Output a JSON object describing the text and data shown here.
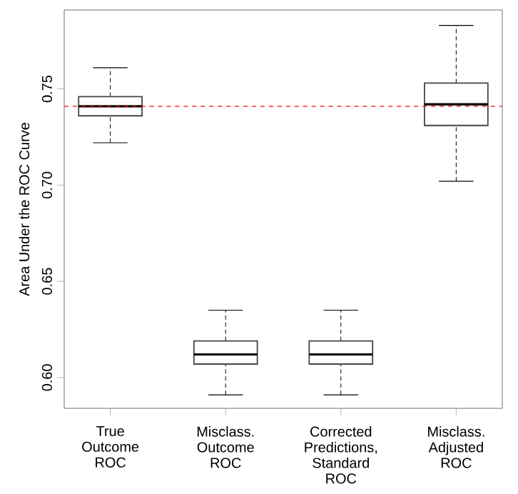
{
  "chart_data": {
    "type": "box",
    "ylabel": "Area Under the ROC Curve",
    "categories": [
      "True Outcome ROC",
      "Misclass. Outcome ROC",
      "Corrected Predictions, Standard ROC",
      "Misclass. Adjusted ROC"
    ],
    "boxes": [
      {
        "low": 0.722,
        "q1": 0.736,
        "median": 0.741,
        "q3": 0.746,
        "high": 0.761
      },
      {
        "low": 0.591,
        "q1": 0.607,
        "median": 0.612,
        "q3": 0.619,
        "high": 0.635
      },
      {
        "low": 0.591,
        "q1": 0.607,
        "median": 0.612,
        "q3": 0.619,
        "high": 0.635
      },
      {
        "low": 0.702,
        "q1": 0.731,
        "median": 0.742,
        "q3": 0.753,
        "high": 0.783
      }
    ],
    "color": "#444444",
    "ylim": [
      0.584,
      0.791
    ],
    "yticks": [
      {
        "value": 0.6,
        "label": "0.60"
      },
      {
        "value": 0.65,
        "label": "0.65"
      },
      {
        "value": 0.7,
        "label": "0.70"
      },
      {
        "value": 0.75,
        "label": "0.75"
      }
    ],
    "ref_lines": [
      {
        "axis": "y",
        "value": 0.741,
        "color": "#ff0000",
        "line_style": "dashed"
      }
    ],
    "grid": false
  }
}
